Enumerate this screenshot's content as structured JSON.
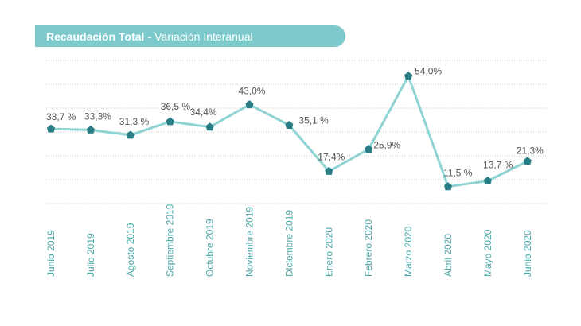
{
  "title": {
    "main": "Recaudación Total",
    "separator": "-",
    "sub": "Variación Interanual"
  },
  "colors": {
    "title_bg": "#7ccacb",
    "line": "#8fd3d3",
    "marker": "#2a7f86",
    "label_text": "#555555",
    "axis_text": "#4aa8a8",
    "grid": "#c8c8c8"
  },
  "chart_data": {
    "type": "line",
    "categories": [
      "Junio 2019",
      "Julio 2019",
      "Agosto 2019",
      "Septiembre 2019",
      "Octubre 2019",
      "Noviembre 2019",
      "Diciembre 2019",
      "Enero 2020",
      "Febrero 2020",
      "Marzo 2020",
      "Abril 2020",
      "Mayo 2020",
      "Junio 2020"
    ],
    "values": [
      33.7,
      33.3,
      31.3,
      36.5,
      34.4,
      43.0,
      35.1,
      17.4,
      25.9,
      54.0,
      11.5,
      13.7,
      21.3
    ],
    "data_labels": [
      "33,7 %",
      "33,3%",
      "31,3 %",
      "36,5 %",
      "34,4%",
      "43,0%",
      "35,1 %",
      "17,4%",
      "25,9%",
      "54,0%",
      "11,5 %",
      "13,7 %",
      "21,3%"
    ],
    "ylim": [
      5,
      60
    ],
    "grid": true,
    "legend": false
  }
}
